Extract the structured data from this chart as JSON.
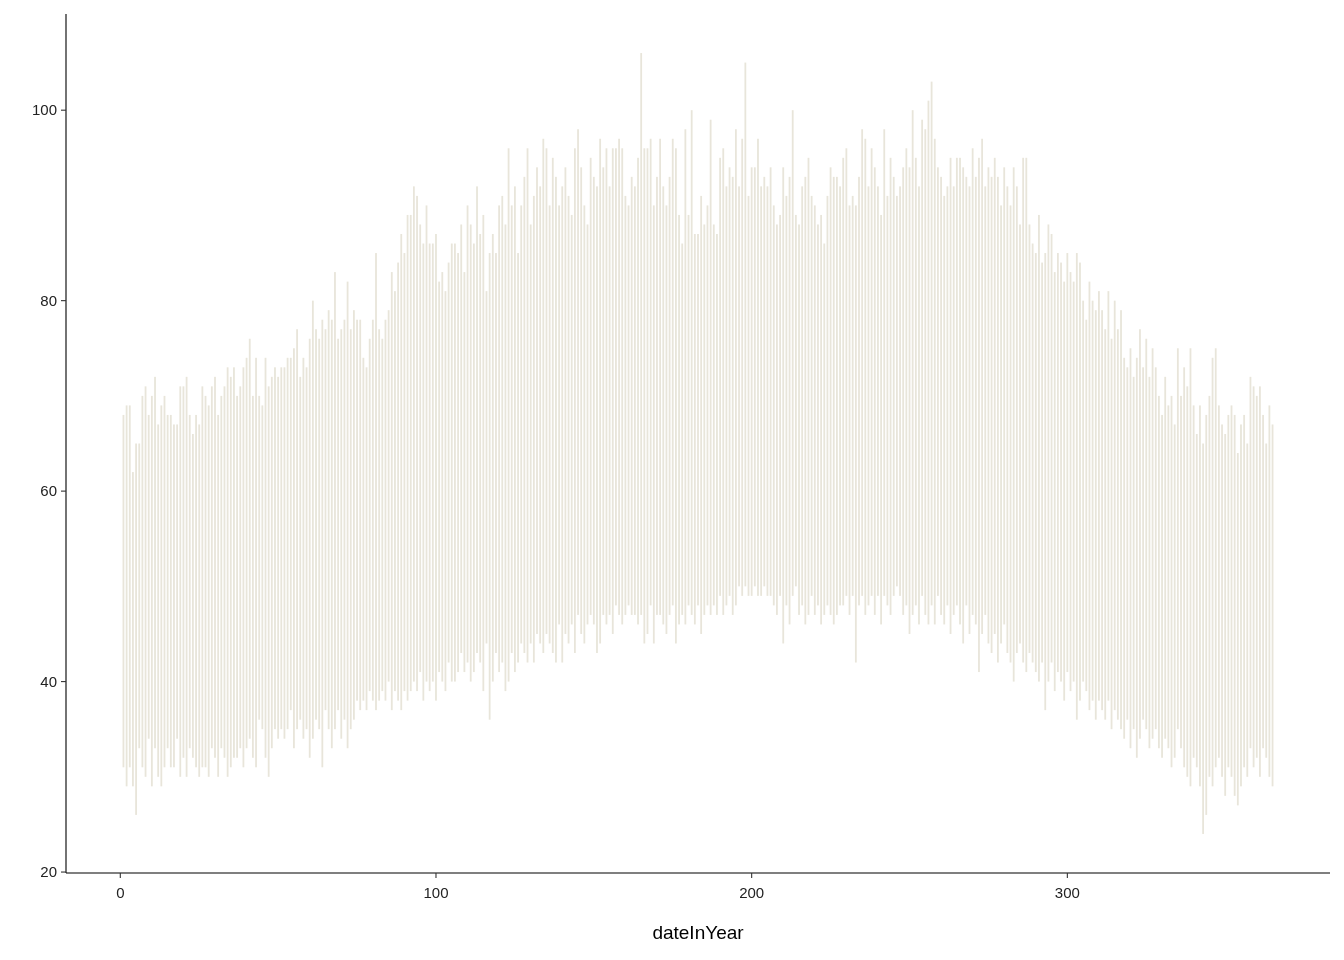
{
  "chart_data": {
    "type": "bar",
    "xlabel": "dateInYear",
    "color": "#e8e5da",
    "xlim": [
      -17.2,
      383.2
    ],
    "ylim": [
      19.9,
      110.1
    ],
    "xticks": [
      0,
      100,
      200,
      300
    ],
    "yticks": [
      20,
      40,
      60,
      80,
      100
    ],
    "x": [
      1,
      2,
      3,
      4,
      5,
      6,
      7,
      8,
      9,
      10,
      11,
      12,
      13,
      14,
      15,
      16,
      17,
      18,
      19,
      20,
      21,
      22,
      23,
      24,
      25,
      26,
      27,
      28,
      29,
      30,
      31,
      32,
      33,
      34,
      35,
      36,
      37,
      38,
      39,
      40,
      41,
      42,
      43,
      44,
      45,
      46,
      47,
      48,
      49,
      50,
      51,
      52,
      53,
      54,
      55,
      56,
      57,
      58,
      59,
      60,
      61,
      62,
      63,
      64,
      65,
      66,
      67,
      68,
      69,
      70,
      71,
      72,
      73,
      74,
      75,
      76,
      77,
      78,
      79,
      80,
      81,
      82,
      83,
      84,
      85,
      86,
      87,
      88,
      89,
      90,
      91,
      92,
      93,
      94,
      95,
      96,
      97,
      98,
      99,
      100,
      101,
      102,
      103,
      104,
      105,
      106,
      107,
      108,
      109,
      110,
      111,
      112,
      113,
      114,
      115,
      116,
      117,
      118,
      119,
      120,
      121,
      122,
      123,
      124,
      125,
      126,
      127,
      128,
      129,
      130,
      131,
      132,
      133,
      134,
      135,
      136,
      137,
      138,
      139,
      140,
      141,
      142,
      143,
      144,
      145,
      146,
      147,
      148,
      149,
      150,
      151,
      152,
      153,
      154,
      155,
      156,
      157,
      158,
      159,
      160,
      161,
      162,
      163,
      164,
      165,
      166,
      167,
      168,
      169,
      170,
      171,
      172,
      173,
      174,
      175,
      176,
      177,
      178,
      179,
      180,
      181,
      182,
      183,
      184,
      185,
      186,
      187,
      188,
      189,
      190,
      191,
      192,
      193,
      194,
      195,
      196,
      197,
      198,
      199,
      200,
      201,
      202,
      203,
      204,
      205,
      206,
      207,
      208,
      209,
      210,
      211,
      212,
      213,
      214,
      215,
      216,
      217,
      218,
      219,
      220,
      221,
      222,
      223,
      224,
      225,
      226,
      227,
      228,
      229,
      230,
      231,
      232,
      233,
      234,
      235,
      236,
      237,
      238,
      239,
      240,
      241,
      242,
      243,
      244,
      245,
      246,
      247,
      248,
      249,
      250,
      251,
      252,
      253,
      254,
      255,
      256,
      257,
      258,
      259,
      260,
      261,
      262,
      263,
      264,
      265,
      266,
      267,
      268,
      269,
      270,
      271,
      272,
      273,
      274,
      275,
      276,
      277,
      278,
      279,
      280,
      281,
      282,
      283,
      284,
      285,
      286,
      287,
      288,
      289,
      290,
      291,
      292,
      293,
      294,
      295,
      296,
      297,
      298,
      299,
      300,
      301,
      302,
      303,
      304,
      305,
      306,
      307,
      308,
      309,
      310,
      311,
      312,
      313,
      314,
      315,
      316,
      317,
      318,
      319,
      320,
      321,
      322,
      323,
      324,
      325,
      326,
      327,
      328,
      329,
      330,
      331,
      332,
      333,
      334,
      335,
      336,
      337,
      338,
      339,
      340,
      341,
      342,
      343,
      344,
      345,
      346,
      347,
      348,
      349,
      350,
      351,
      352,
      353,
      354,
      355,
      356,
      357,
      358,
      359,
      360,
      361,
      362,
      363,
      364,
      365
    ],
    "values": [
      37,
      40,
      38,
      33,
      39,
      32,
      39,
      41,
      34,
      41,
      39,
      37,
      40,
      39,
      35,
      37,
      36,
      33,
      41,
      39,
      42,
      35,
      34,
      37,
      37,
      40,
      39,
      39,
      38,
      40,
      38,
      37,
      39,
      43,
      41,
      41,
      38,
      38,
      42,
      41,
      42,
      38,
      43,
      34,
      34,
      42,
      41,
      39,
      38,
      38,
      38,
      39,
      39,
      37,
      42,
      42,
      36,
      40,
      38,
      44,
      46,
      41,
      41,
      47,
      40,
      44,
      45,
      48,
      39,
      43,
      42,
      49,
      42,
      43,
      40,
      41,
      36,
      36,
      37,
      40,
      48,
      39,
      37,
      40,
      39,
      46,
      42,
      46,
      50,
      46,
      51,
      50,
      52,
      52,
      47,
      48,
      50,
      47,
      46,
      49,
      41,
      43,
      42,
      42,
      46,
      46,
      44,
      45,
      42,
      48,
      48,
      45,
      49,
      45,
      50,
      37,
      49,
      47,
      42,
      49,
      49,
      49,
      56,
      47,
      51,
      43,
      46,
      50,
      54,
      44,
      49,
      49,
      48,
      54,
      51,
      46,
      52,
      51,
      44,
      50,
      49,
      47,
      43,
      53,
      51,
      49,
      46,
      42,
      48,
      47,
      49,
      53,
      47,
      50,
      45,
      51,
      48,
      50,
      50,
      44,
      42,
      46,
      45,
      49,
      59,
      52,
      51,
      49,
      46,
      46,
      50,
      46,
      45,
      46,
      49,
      52,
      43,
      39,
      52,
      41,
      53,
      41,
      39,
      46,
      41,
      42,
      52,
      40,
      40,
      46,
      49,
      44,
      45,
      46,
      50,
      42,
      48,
      55,
      42,
      45,
      44,
      48,
      43,
      43,
      43,
      45,
      42,
      41,
      40,
      50,
      43,
      47,
      51,
      39,
      41,
      44,
      47,
      48,
      42,
      43,
      40,
      43,
      39,
      43,
      47,
      47,
      46,
      44,
      47,
      47,
      43,
      42,
      48,
      45,
      49,
      50,
      44,
      47,
      47,
      43,
      43,
      49,
      43,
      48,
      44,
      41,
      43,
      47,
      48,
      49,
      53,
      47,
      46,
      50,
      51,
      55,
      55,
      51,
      45,
      46,
      45,
      44,
      50,
      45,
      47,
      49,
      50,
      45,
      47,
      49,
      47,
      54,
      52,
      45,
      50,
      50,
      50,
      51,
      46,
      48,
      49,
      48,
      54,
      49,
      44,
      53,
      54,
      45,
      44,
      44,
      49,
      42,
      48,
      48,
      45,
      44,
      44,
      44,
      44,
      44,
      44,
      42,
      49,
      46,
      40,
      39,
      45,
      42,
      43,
      43,
      42,
      41,
      43,
      41,
      43,
      41,
      44,
      40,
      37,
      42,
      37,
      42,
      43,
      37,
      41,
      39,
      41,
      38,
      37,
      36,
      38,
      36,
      39,
      35,
      40,
      37,
      42,
      41,
      46,
      37,
      35,
      40,
      41,
      42,
      40,
      45,
      44,
      37,
      37,
      38,
      37,
      39,
      40,
      37,
      38,
      37,
      35,
      39,
      40,
      38,
      41,
      35,
      33,
      39,
      38
    ],
    "base": [
      31,
      29,
      31,
      29,
      26,
      33,
      31,
      30,
      34,
      29,
      33,
      30,
      29,
      31,
      33,
      31,
      31,
      34,
      30,
      32,
      30,
      33,
      32,
      31,
      30,
      31,
      31,
      30,
      33,
      32,
      30,
      33,
      32,
      30,
      31,
      32,
      32,
      33,
      31,
      33,
      34,
      32,
      31,
      36,
      35,
      32,
      30,
      33,
      35,
      34,
      35,
      34,
      35,
      37,
      33,
      35,
      36,
      34,
      35,
      32,
      34,
      36,
      35,
      31,
      37,
      35,
      33,
      35,
      37,
      34,
      36,
      33,
      35,
      36,
      38,
      37,
      38,
      37,
      39,
      38,
      37,
      38,
      39,
      38,
      40,
      37,
      39,
      38,
      37,
      39,
      38,
      39,
      40,
      39,
      41,
      38,
      40,
      39,
      40,
      38,
      41,
      40,
      39,
      42,
      40,
      40,
      41,
      43,
      41,
      42,
      40,
      41,
      43,
      42,
      39,
      44,
      36,
      40,
      43,
      41,
      42,
      39,
      40,
      43,
      41,
      42,
      44,
      43,
      42,
      44,
      42,
      45,
      44,
      43,
      45,
      44,
      43,
      42,
      46,
      42,
      45,
      44,
      46,
      43,
      47,
      45,
      44,
      46,
      47,
      46,
      43,
      44,
      47,
      46,
      47,
      45,
      48,
      47,
      46,
      47,
      48,
      47,
      47,
      46,
      47,
      44,
      45,
      48,
      44,
      47,
      47,
      46,
      45,
      47,
      48,
      44,
      46,
      47,
      46,
      48,
      47,
      46,
      48,
      45,
      47,
      48,
      47,
      48,
      47,
      49,
      47,
      48,
      49,
      47,
      48,
      50,
      49,
      50,
      49,
      49,
      50,
      49,
      49,
      50,
      49,
      49,
      48,
      47,
      49,
      44,
      48,
      46,
      49,
      50,
      47,
      48,
      46,
      47,
      49,
      47,
      48,
      46,
      47,
      48,
      47,
      46,
      47,
      48,
      48,
      49,
      47,
      49,
      42,
      48,
      49,
      47,
      48,
      49,
      47,
      49,
      46,
      49,
      48,
      47,
      49,
      50,
      49,
      47,
      48,
      45,
      47,
      48,
      46,
      49,
      47,
      46,
      48,
      46,
      49,
      47,
      46,
      48,
      45,
      47,
      48,
      46,
      44,
      48,
      45,
      47,
      46,
      41,
      45,
      47,
      44,
      43,
      45,
      42,
      44,
      46,
      43,
      42,
      40,
      43,
      44,
      42,
      41,
      43,
      42,
      41,
      40,
      42,
      37,
      40,
      42,
      39,
      41,
      40,
      38,
      41,
      39,
      40,
      36,
      38,
      40,
      39,
      37,
      38,
      36,
      38,
      37,
      36,
      38,
      35,
      37,
      36,
      35,
      34,
      36,
      33,
      35,
      32,
      34,
      36,
      35,
      33,
      34,
      35,
      33,
      32,
      34,
      33,
      31,
      32,
      35,
      33,
      31,
      30,
      29,
      32,
      31,
      29,
      24,
      26,
      30,
      29,
      31,
      32,
      30,
      28,
      31,
      30,
      28,
      27,
      29,
      31,
      30,
      33,
      31,
      32,
      30,
      33,
      32,
      30,
      29
    ]
  }
}
